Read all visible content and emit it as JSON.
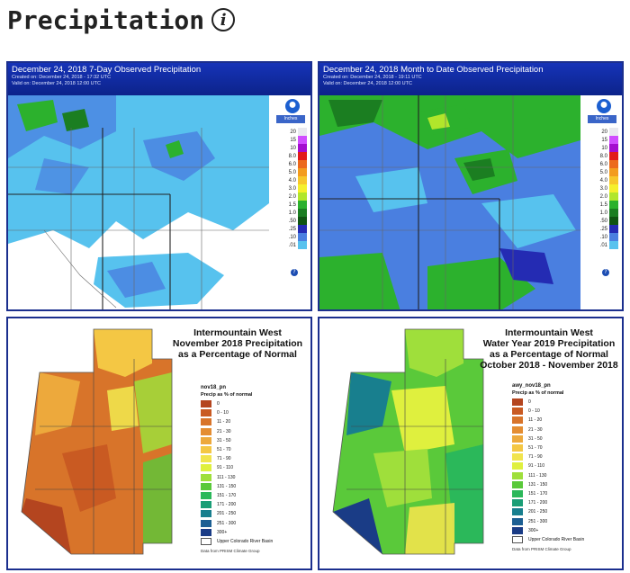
{
  "heading": {
    "title": "Precipitation",
    "info_glyph": "i"
  },
  "panels": {
    "weekly": {
      "title": "December 24, 2018 7-Day Observed Precipitation",
      "created": "Created on: December 24, 2018 - 17:32 UTC",
      "valid": "Valid on: December 24, 2018 12:00 UTC",
      "units": "Inches"
    },
    "monthly": {
      "title": "December 24, 2018 Month to Date Observed Precipitation",
      "created": "Created on: December 24, 2018 - 19:11 UTC",
      "valid": "Valid on: December 24, 2018 12:00 UTC",
      "units": "Inches"
    },
    "november": {
      "title_lines": [
        "Intermountain West",
        "November 2018 Precipitation",
        "as a Percentage of Normal"
      ],
      "layer": "nov18_pn"
    },
    "water_year": {
      "title_lines": [
        "Intermountain West",
        "Water Year 2019 Precipitation",
        "as a Percentage of Normal",
        "October 2018 - November 2018"
      ],
      "layer": "awy_nov18_pn"
    }
  },
  "inches_legend": [
    {
      "label": "20",
      "color": "#e9e9ef"
    },
    {
      "label": "15",
      "color": "#d04dff"
    },
    {
      "label": "10",
      "color": "#a40ccf"
    },
    {
      "label": "8.0",
      "color": "#e21a1a"
    },
    {
      "label": "6.0",
      "color": "#ec6a1d"
    },
    {
      "label": "5.0",
      "color": "#f39c1e"
    },
    {
      "label": "4.0",
      "color": "#f7c72a"
    },
    {
      "label": "3.0",
      "color": "#f5f02b"
    },
    {
      "label": "2.0",
      "color": "#b1e62b"
    },
    {
      "label": "1.5",
      "color": "#2cb12d"
    },
    {
      "label": "1.0",
      "color": "#1b7e21"
    },
    {
      "label": ".50",
      "color": "#0f5411"
    },
    {
      "label": ".25",
      "color": "#242bb3"
    },
    {
      "label": ".10",
      "color": "#4a7fe0"
    },
    {
      "label": ".01",
      "color": "#57c2ee"
    }
  ],
  "percent_legend": {
    "title": "Precip as % of normal",
    "items": [
      {
        "label": "0",
        "color": "#b4451f"
      },
      {
        "label": "0 - 10",
        "color": "#c95a22"
      },
      {
        "label": "11 - 20",
        "color": "#d8742a"
      },
      {
        "label": "21 - 30",
        "color": "#e48d32"
      },
      {
        "label": "31 - 50",
        "color": "#eda93c"
      },
      {
        "label": "51 - 70",
        "color": "#f4c744"
      },
      {
        "label": "71 - 90",
        "color": "#f1e44d"
      },
      {
        "label": "91 - 110",
        "color": "#dff03e"
      },
      {
        "label": "111 - 130",
        "color": "#9fdf3b"
      },
      {
        "label": "131 - 150",
        "color": "#5ac93a"
      },
      {
        "label": "151 - 170",
        "color": "#2bb85a"
      },
      {
        "label": "171 - 200",
        "color": "#1a9e76"
      },
      {
        "label": "201 - 250",
        "color": "#187f8e"
      },
      {
        "label": "251 - 300",
        "color": "#1c5f93"
      },
      {
        "label": "300+",
        "color": "#1a3c86"
      }
    ],
    "basin_label": "Upper Colorado River Basin",
    "source": "Data from PRISM Climate Group"
  }
}
